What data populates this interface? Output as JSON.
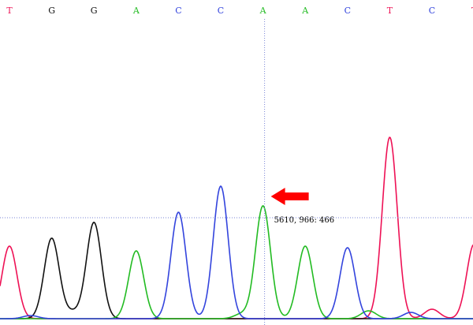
{
  "chart_data": {
    "type": "line",
    "base_calls": [
      "T",
      "G",
      "G",
      "A",
      "C",
      "C",
      "A",
      "A",
      "C",
      "T",
      "C",
      "T"
    ],
    "base_colors": {
      "A": "#22bb22",
      "C": "#3344dd",
      "G": "#111111",
      "T": "#ee1155"
    },
    "series": [
      {
        "base": "T",
        "peaks": [
          [
            0,
            92
          ],
          [
            9,
            230
          ],
          [
            10,
            12
          ],
          [
            11,
            95
          ]
        ]
      },
      {
        "base": "G",
        "peaks": [
          [
            1,
            102
          ],
          [
            2,
            122
          ],
          [
            1.5,
            8
          ]
        ]
      },
      {
        "base": "A",
        "peaks": [
          [
            3,
            86
          ],
          [
            6,
            143
          ],
          [
            7,
            92
          ],
          [
            5.5,
            6
          ],
          [
            8.5,
            10
          ]
        ]
      },
      {
        "base": "C",
        "peaks": [
          [
            4,
            135
          ],
          [
            5,
            168
          ],
          [
            8,
            90
          ],
          [
            9.5,
            8
          ],
          [
            0.5,
            4
          ]
        ]
      }
    ],
    "cursor": {
      "base_index": 6,
      "label": "5610, 966: 466",
      "value": 143
    },
    "threshold_value": 128,
    "annotation": {
      "type": "arrow",
      "color": "#ff0000",
      "points_to": "cursor"
    },
    "grid": false
  }
}
